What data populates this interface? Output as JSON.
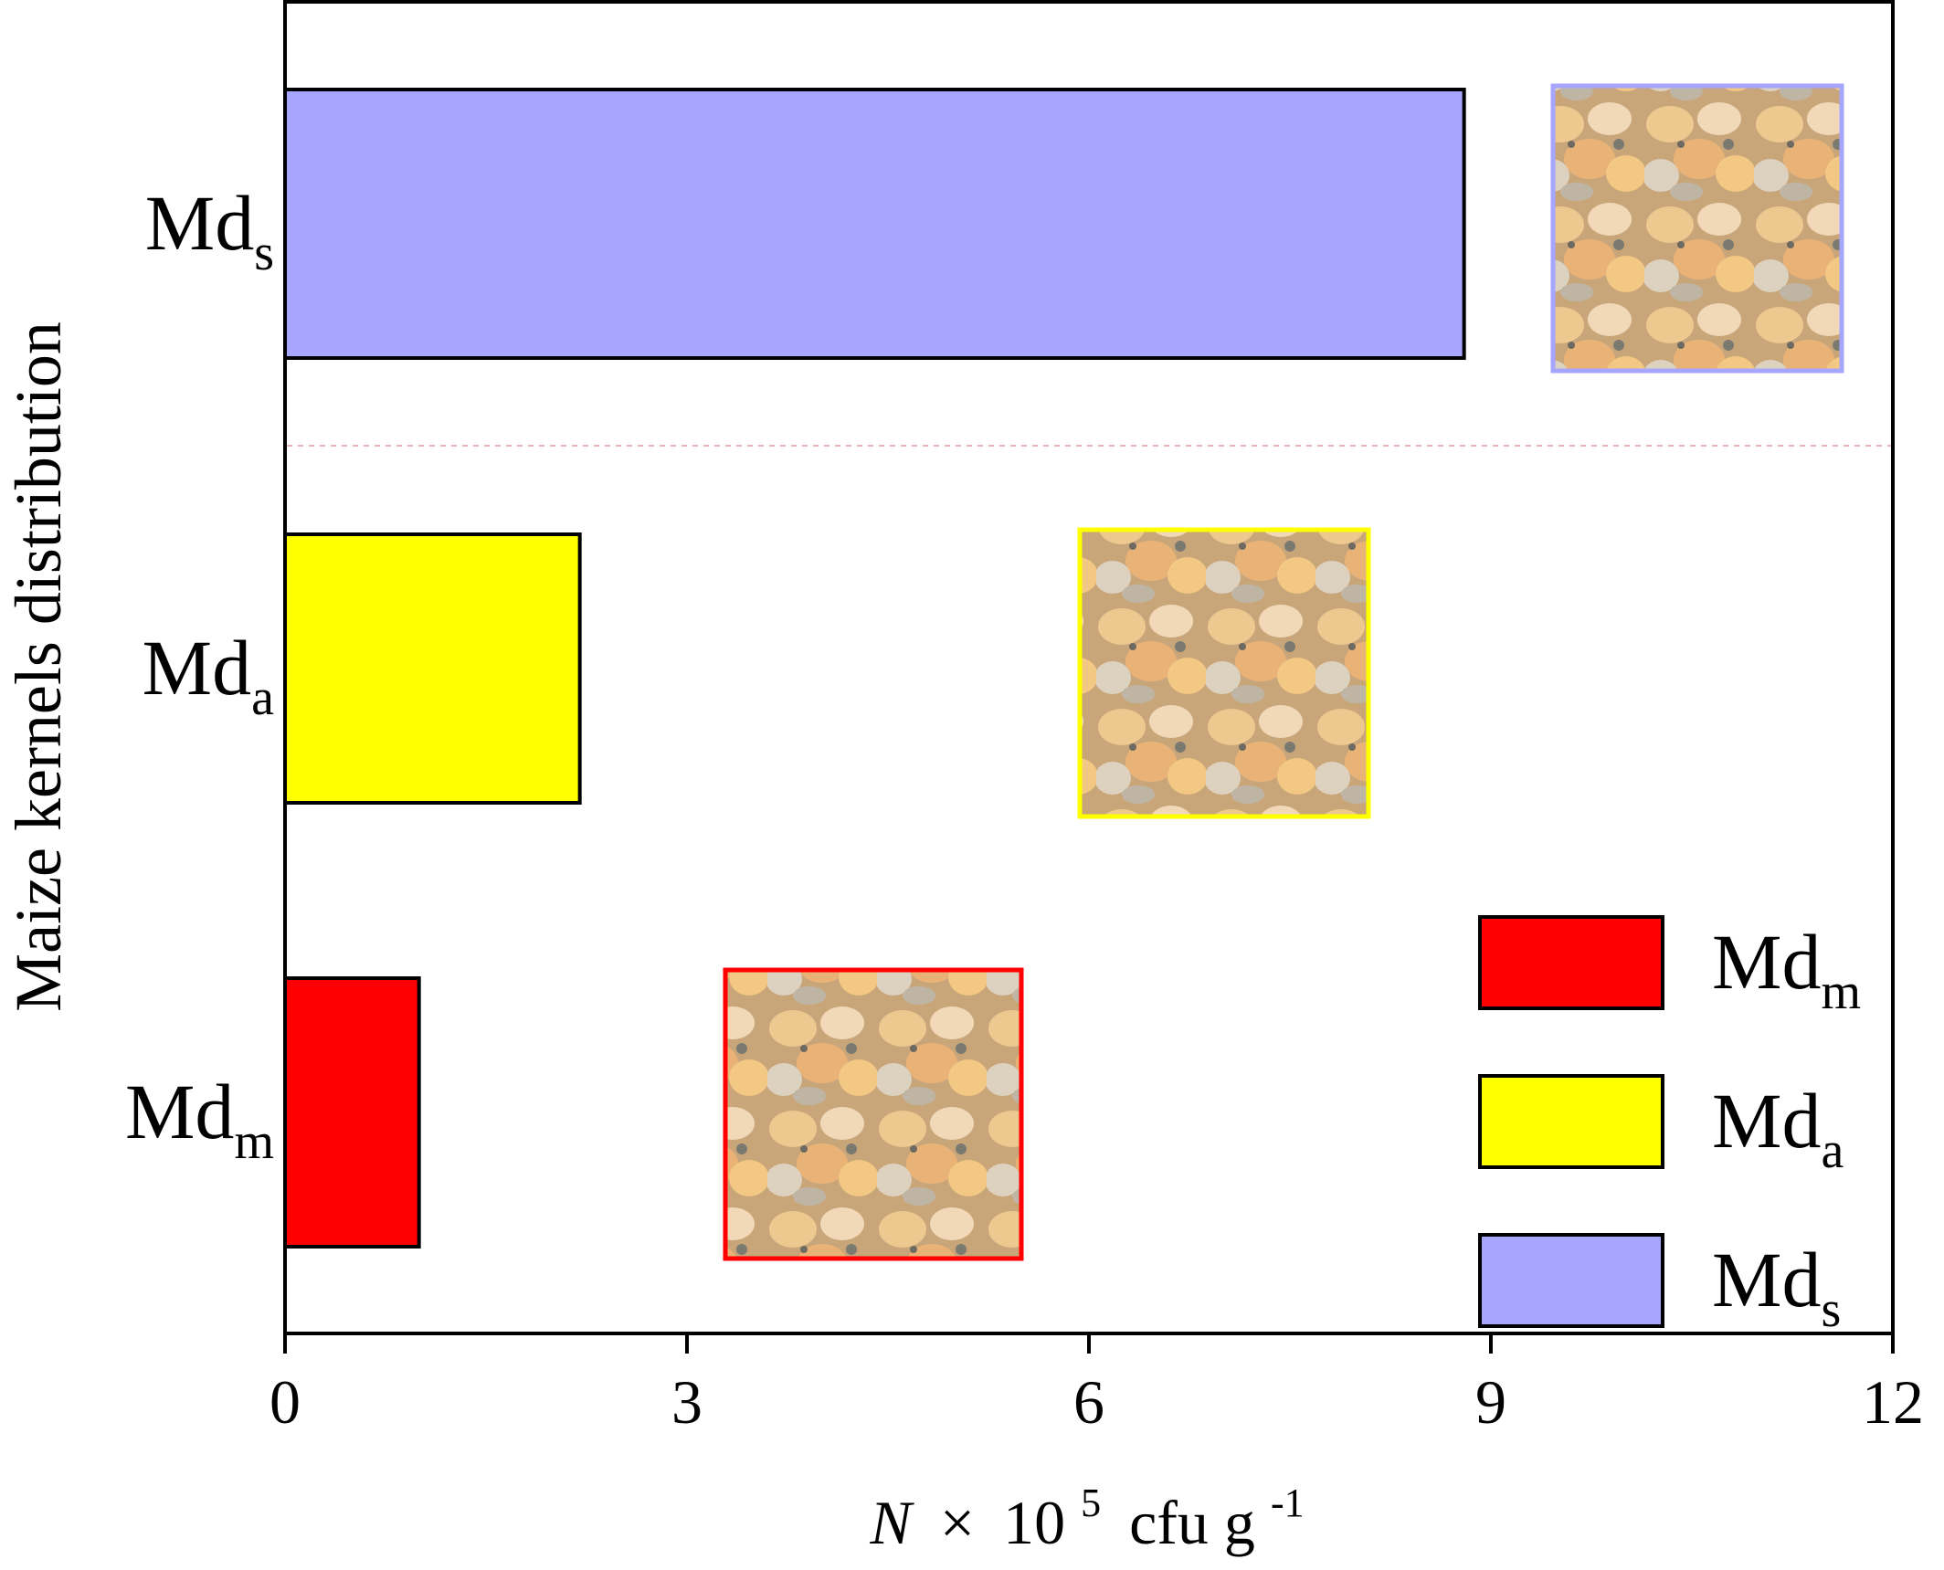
{
  "chart_data": {
    "type": "bar",
    "orientation": "horizontal",
    "title": "",
    "xlabel": {
      "italic_symbol": "N",
      "times": "×",
      "base": "10",
      "exponent": "5",
      "unit": "cfu g",
      "unit_exponent": "-1"
    },
    "ylabel": "Maize kernels distribution",
    "xlim": [
      0,
      12
    ],
    "xticks": [
      "0",
      "3",
      "6",
      "9",
      "12"
    ],
    "categories": [
      {
        "base": "Md",
        "sub": "s"
      },
      {
        "base": "Md",
        "sub": "a"
      },
      {
        "base": "Md",
        "sub": "m"
      }
    ],
    "values": [
      8.8,
      2.2,
      1.0
    ],
    "bar_colors": [
      "#a6a6ff",
      "#ffff00",
      "#ff0000"
    ],
    "legend": {
      "placement": "bottom-right",
      "entries": [
        {
          "base": "Md",
          "sub": "m",
          "color": "#ff0000"
        },
        {
          "base": "Md",
          "sub": "a",
          "color": "#ffff00"
        },
        {
          "base": "Md",
          "sub": "s",
          "color": "#a6a6ff"
        }
      ]
    },
    "grid": false,
    "reference_line": {
      "orientation": "horizontal",
      "style": "dashed",
      "color": "#e8b4b8"
    },
    "inset_photos": [
      {
        "description": "maize kernels sample",
        "border_color": "#a6a6ff",
        "category": "s"
      },
      {
        "description": "maize kernels sample",
        "border_color": "#ffff00",
        "category": "a"
      },
      {
        "description": "maize kernels sample",
        "border_color": "#ff0000",
        "category": "m"
      }
    ]
  }
}
